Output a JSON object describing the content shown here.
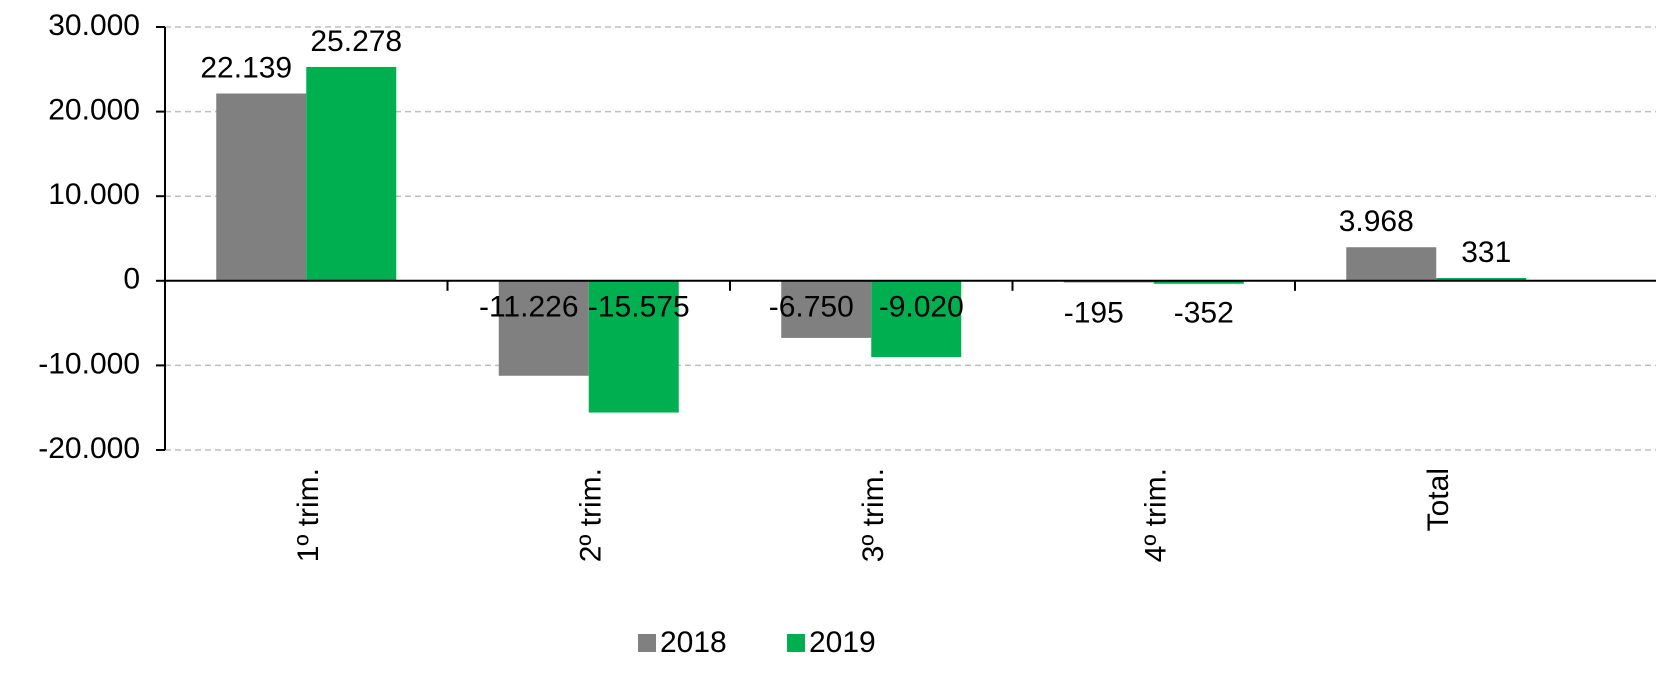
{
  "chart_data": {
    "type": "bar",
    "categories": [
      "1º trim.",
      "2º trim.",
      "3º trim.",
      "4º trim.",
      "Total"
    ],
    "series": [
      {
        "name": "2018",
        "color": "#808080",
        "values": [
          22139,
          -11226,
          -6750,
          -195,
          3968
        ],
        "value_labels": [
          "22.139",
          "-11.226",
          "-6.750",
          "-195",
          "3.968"
        ]
      },
      {
        "name": "2019",
        "color": "#00b050",
        "values": [
          25278,
          -15575,
          -9020,
          -352,
          331
        ],
        "value_labels": [
          "25.278",
          "-15.575",
          "-9.020",
          "-352",
          "331"
        ]
      }
    ],
    "ylim": [
      -20000,
      30000
    ],
    "yticks": [
      {
        "value": -20000,
        "label": "-20.000"
      },
      {
        "value": -10000,
        "label": "-10.000"
      },
      0,
      {
        "value": 10000,
        "label": "10.000"
      },
      {
        "value": 20000,
        "label": "20.000"
      },
      {
        "value": 30000,
        "label": "30.000"
      }
    ],
    "grid": true,
    "legend": "bottom"
  }
}
